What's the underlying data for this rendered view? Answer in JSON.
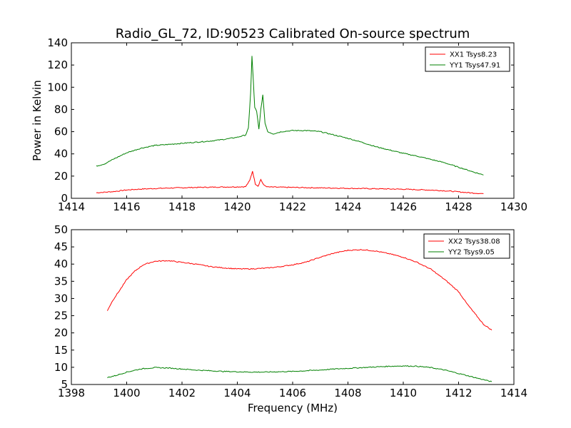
{
  "title": "Radio_GL_72, ID:90523 Calibrated On-source spectrum",
  "chart_data": [
    {
      "type": "line",
      "ylabel": "Power in Kelvin",
      "xlabel": "",
      "xlim": [
        1414,
        1430
      ],
      "ylim": [
        0,
        140
      ],
      "xticks": [
        1414,
        1416,
        1418,
        1420,
        1422,
        1424,
        1426,
        1428,
        1430
      ],
      "yticks": [
        0,
        20,
        40,
        60,
        80,
        100,
        120,
        140
      ],
      "legend_position": "top-right",
      "series": [
        {
          "name": "XX1 Tsys8.23",
          "color": "#ff0000",
          "x": [
            1414.9,
            1415.5,
            1416,
            1416.5,
            1417,
            1417.5,
            1418,
            1418.5,
            1419,
            1419.5,
            1420,
            1420.3,
            1420.45,
            1420.55,
            1420.65,
            1420.75,
            1420.85,
            1420.95,
            1421.1,
            1421.5,
            1422,
            1423,
            1424,
            1425,
            1426,
            1427,
            1427.5,
            1428,
            1428.5,
            1428.9
          ],
          "y": [
            5,
            6,
            7.5,
            8.3,
            8.8,
            9.2,
            9.5,
            9.8,
            10,
            10.2,
            10.3,
            10.5,
            16,
            24.5,
            13,
            11,
            17,
            12,
            10.2,
            10,
            9.8,
            9.4,
            9,
            8.6,
            8.2,
            7.4,
            6.8,
            5.8,
            4.8,
            4.2
          ]
        },
        {
          "name": "YY1 Tsys47.91",
          "color": "#008000",
          "x": [
            1414.9,
            1415.2,
            1415.5,
            1416,
            1416.5,
            1417,
            1417.5,
            1418,
            1418.5,
            1419,
            1419.5,
            1420,
            1420.3,
            1420.4,
            1420.48,
            1420.53,
            1420.58,
            1420.63,
            1420.7,
            1420.78,
            1420.85,
            1420.92,
            1421,
            1421.1,
            1421.3,
            1421.6,
            1422,
            1422.5,
            1423,
            1423.5,
            1424,
            1424.5,
            1425,
            1425.5,
            1426,
            1426.5,
            1427,
            1427.5,
            1428,
            1428.5,
            1428.9
          ],
          "y": [
            29,
            31,
            35,
            41,
            45,
            47.5,
            48.5,
            49.5,
            50.5,
            51.5,
            53,
            55,
            57,
            63,
            95,
            128,
            105,
            82,
            78,
            62,
            80,
            93,
            68,
            60,
            58,
            60,
            61,
            61,
            60,
            57,
            54,
            50.5,
            46.5,
            43.5,
            40.5,
            38,
            35,
            32,
            28,
            24,
            21
          ]
        }
      ]
    },
    {
      "type": "line",
      "ylabel": "",
      "xlabel": "Frequency (MHz)",
      "xlim": [
        1398,
        1414
      ],
      "ylim": [
        5,
        50
      ],
      "xticks": [
        1398,
        1400,
        1402,
        1404,
        1406,
        1408,
        1410,
        1412,
        1414
      ],
      "yticks": [
        5,
        10,
        15,
        20,
        25,
        30,
        35,
        40,
        45,
        50
      ],
      "legend_position": "top-right",
      "series": [
        {
          "name": "XX2 Tsys38.08",
          "color": "#ff0000",
          "x": [
            1399.3,
            1399.5,
            1399.8,
            1400,
            1400.3,
            1400.6,
            1401,
            1401.5,
            1402,
            1402.5,
            1403,
            1403.5,
            1404,
            1404.5,
            1405,
            1405.5,
            1406,
            1406.5,
            1407,
            1407.5,
            1408,
            1408.5,
            1409,
            1409.5,
            1410,
            1410.5,
            1411,
            1411.5,
            1412,
            1412.3,
            1412.6,
            1412.9,
            1413.2
          ],
          "y": [
            26.5,
            29.5,
            33,
            35.5,
            38,
            39.8,
            40.8,
            41,
            40.5,
            40,
            39.3,
            38.9,
            38.6,
            38.6,
            38.8,
            39.2,
            39.8,
            40.6,
            42,
            43.2,
            44,
            44.2,
            43.8,
            43,
            42,
            40.5,
            38.5,
            35.5,
            32,
            28.5,
            25.5,
            22.5,
            20.8
          ]
        },
        {
          "name": "YY2 Tsys9.05",
          "color": "#008000",
          "x": [
            1399.3,
            1399.6,
            1400,
            1400.5,
            1401,
            1401.5,
            1402,
            1402.5,
            1403,
            1403.5,
            1404,
            1404.5,
            1405,
            1405.5,
            1406,
            1406.5,
            1407,
            1407.5,
            1408,
            1408.5,
            1409,
            1409.5,
            1410,
            1410.5,
            1411,
            1411.5,
            1412,
            1412.5,
            1413,
            1413.2
          ],
          "y": [
            7,
            7.6,
            8.6,
            9.5,
            9.9,
            9.8,
            9.5,
            9.2,
            9,
            8.8,
            8.7,
            8.6,
            8.6,
            8.7,
            8.8,
            9,
            9.2,
            9.5,
            9.7,
            9.9,
            10.1,
            10.3,
            10.4,
            10.3,
            9.9,
            9.2,
            8.2,
            7.2,
            6.2,
            5.8
          ]
        }
      ]
    }
  ]
}
